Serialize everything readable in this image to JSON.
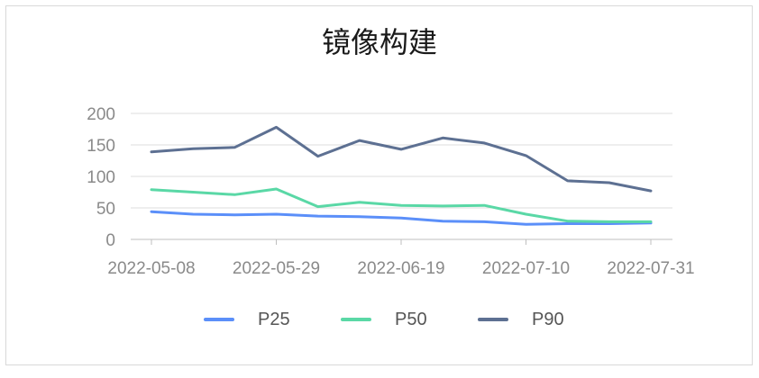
{
  "chart_data": {
    "type": "line",
    "title": "镜像构建",
    "xlabel": "",
    "ylabel": "",
    "x": [
      "2022-05-08",
      "2022-05-15",
      "2022-05-22",
      "2022-05-29",
      "2022-06-05",
      "2022-06-12",
      "2022-06-19",
      "2022-06-26",
      "2022-07-03",
      "2022-07-10",
      "2022-07-17",
      "2022-07-24",
      "2022-07-31"
    ],
    "xticks": [
      "2022-05-08",
      "2022-05-29",
      "2022-06-19",
      "2022-07-10",
      "2022-07-31"
    ],
    "yticks": [
      0,
      50,
      100,
      150,
      200
    ],
    "ylim": [
      0,
      200
    ],
    "grid": true,
    "legend_position": "bottom",
    "series": [
      {
        "name": "P25",
        "color": "#5b8ff9",
        "values": [
          44,
          40,
          39,
          40,
          37,
          36,
          34,
          29,
          28,
          24,
          25,
          25,
          26
        ]
      },
      {
        "name": "P50",
        "color": "#5ad8a6",
        "values": [
          79,
          75,
          71,
          80,
          52,
          59,
          54,
          53,
          54,
          40,
          29,
          28,
          28
        ]
      },
      {
        "name": "P90",
        "color": "#5d7092",
        "values": [
          139,
          144,
          146,
          178,
          132,
          157,
          143,
          161,
          153,
          133,
          93,
          90,
          77
        ]
      }
    ]
  }
}
